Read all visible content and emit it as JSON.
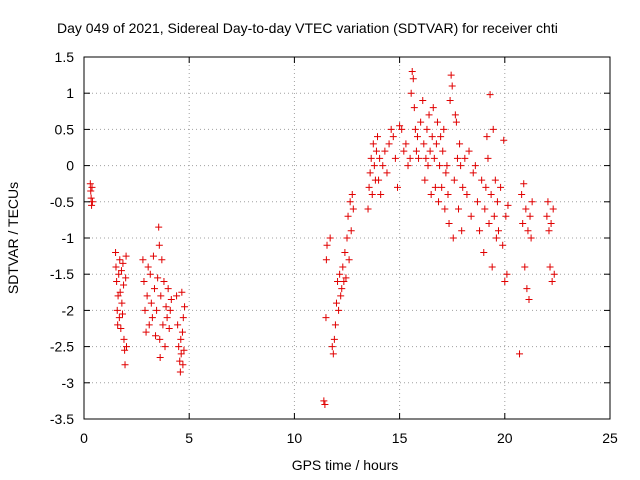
{
  "chart_data": {
    "type": "scatter",
    "title": "Day 049 of 2021, Sidereal Day-to-day VTEC variation (SDTVAR) for receiver chti",
    "xlabel": "GPS time / hours",
    "ylabel": "SDTVAR / TECUs",
    "xlim": [
      0,
      25
    ],
    "ylim": [
      -3.5,
      1.5
    ],
    "xticks": [
      0,
      5,
      10,
      15,
      20,
      25
    ],
    "xtick_labels": [
      "0",
      "5",
      "10",
      "15",
      "20",
      "25"
    ],
    "yticks": [
      -3.5,
      -3,
      -2.5,
      -2,
      -1.5,
      -1,
      -0.5,
      0,
      0.5,
      1,
      1.5
    ],
    "ytick_labels": [
      "-3.5",
      "-3",
      "-2.5",
      "-2",
      "-1.5",
      "-1",
      "-0.5",
      "0",
      "0.5",
      "1",
      "1.5"
    ],
    "grid": true,
    "marker": "+",
    "marker_color": "#e00000",
    "series": [
      {
        "name": "SDTVAR",
        "points": [
          [
            0.3,
            -0.25
          ],
          [
            0.32,
            -0.35
          ],
          [
            0.34,
            -0.45
          ],
          [
            0.36,
            -0.55
          ],
          [
            0.38,
            -0.3
          ],
          [
            0.4,
            -0.5
          ],
          [
            1.5,
            -1.2
          ],
          [
            1.52,
            -1.4
          ],
          [
            1.55,
            -1.6
          ],
          [
            1.58,
            -2.0
          ],
          [
            1.6,
            -2.2
          ],
          [
            1.62,
            -1.8
          ],
          [
            1.65,
            -1.5
          ],
          [
            1.68,
            -2.1
          ],
          [
            1.7,
            -1.3
          ],
          [
            1.72,
            -1.75
          ],
          [
            1.75,
            -2.25
          ],
          [
            1.78,
            -1.45
          ],
          [
            1.8,
            -1.9
          ],
          [
            1.83,
            -2.05
          ],
          [
            1.85,
            -1.35
          ],
          [
            1.88,
            -1.65
          ],
          [
            1.9,
            -2.4
          ],
          [
            1.93,
            -2.55
          ],
          [
            1.95,
            -2.75
          ],
          [
            1.98,
            -1.55
          ],
          [
            2.0,
            -1.25
          ],
          [
            2.02,
            -2.5
          ],
          [
            2.8,
            -1.3
          ],
          [
            2.85,
            -1.6
          ],
          [
            2.9,
            -2.0
          ],
          [
            2.95,
            -2.3
          ],
          [
            3.0,
            -1.8
          ],
          [
            3.05,
            -1.4
          ],
          [
            3.1,
            -2.2
          ],
          [
            3.15,
            -1.5
          ],
          [
            3.2,
            -1.9
          ],
          [
            3.25,
            -2.1
          ],
          [
            3.3,
            -1.25
          ],
          [
            3.35,
            -1.7
          ],
          [
            3.4,
            -2.35
          ],
          [
            3.45,
            -2.0
          ],
          [
            3.5,
            -1.55
          ],
          [
            3.55,
            -0.85
          ],
          [
            3.58,
            -1.1
          ],
          [
            3.6,
            -2.4
          ],
          [
            3.62,
            -2.65
          ],
          [
            3.65,
            -1.8
          ],
          [
            3.7,
            -1.3
          ],
          [
            3.75,
            -2.2
          ],
          [
            3.8,
            -1.6
          ],
          [
            3.85,
            -2.5
          ],
          [
            3.9,
            -1.95
          ],
          [
            3.95,
            -2.1
          ],
          [
            4.0,
            -1.7
          ],
          [
            4.05,
            -2.25
          ],
          [
            4.1,
            -2.0
          ],
          [
            4.15,
            -1.85
          ],
          [
            4.4,
            -1.8
          ],
          [
            4.45,
            -2.2
          ],
          [
            4.5,
            -2.5
          ],
          [
            4.55,
            -2.7
          ],
          [
            4.58,
            -2.85
          ],
          [
            4.6,
            -2.4
          ],
          [
            4.62,
            -2.6
          ],
          [
            4.65,
            -1.75
          ],
          [
            4.68,
            -2.3
          ],
          [
            4.7,
            -2.75
          ],
          [
            4.72,
            -2.1
          ],
          [
            4.75,
            -2.55
          ],
          [
            4.78,
            -1.95
          ],
          [
            11.4,
            -3.25
          ],
          [
            11.45,
            -3.3
          ],
          [
            11.5,
            -2.1
          ],
          [
            11.52,
            -1.3
          ],
          [
            11.55,
            -1.1
          ],
          [
            11.7,
            -1.0
          ],
          [
            11.8,
            -2.5
          ],
          [
            11.85,
            -2.6
          ],
          [
            11.9,
            -2.4
          ],
          [
            11.95,
            -2.2
          ],
          [
            12.0,
            -1.9
          ],
          [
            12.05,
            -1.6
          ],
          [
            12.1,
            -2.0
          ],
          [
            12.15,
            -1.5
          ],
          [
            12.2,
            -1.8
          ],
          [
            12.25,
            -1.7
          ],
          [
            12.3,
            -1.4
          ],
          [
            12.35,
            -1.6
          ],
          [
            12.4,
            -1.2
          ],
          [
            12.45,
            -1.55
          ],
          [
            12.5,
            -1.0
          ],
          [
            12.55,
            -0.7
          ],
          [
            12.6,
            -1.3
          ],
          [
            12.65,
            -0.5
          ],
          [
            12.7,
            -0.9
          ],
          [
            12.75,
            -0.4
          ],
          [
            12.8,
            -0.6
          ],
          [
            13.5,
            -0.6
          ],
          [
            13.55,
            -0.3
          ],
          [
            13.6,
            -0.1
          ],
          [
            13.65,
            0.1
          ],
          [
            13.7,
            -0.4
          ],
          [
            13.75,
            0.3
          ],
          [
            13.8,
            0.0
          ],
          [
            13.85,
            -0.2
          ],
          [
            13.9,
            0.2
          ],
          [
            13.95,
            0.4
          ],
          [
            14.0,
            -0.2
          ],
          [
            14.05,
            0.1
          ],
          [
            14.1,
            -0.4
          ],
          [
            14.2,
            0.0
          ],
          [
            14.3,
            0.2
          ],
          [
            14.4,
            -0.1
          ],
          [
            14.5,
            0.3
          ],
          [
            14.6,
            0.5
          ],
          [
            14.7,
            0.4
          ],
          [
            14.8,
            0.1
          ],
          [
            14.9,
            -0.3
          ],
          [
            15.0,
            0.55
          ],
          [
            15.1,
            0.5
          ],
          [
            15.2,
            0.2
          ],
          [
            15.3,
            0.3
          ],
          [
            15.4,
            0.0
          ],
          [
            15.5,
            0.1
          ],
          [
            15.55,
            1.0
          ],
          [
            15.6,
            1.3
          ],
          [
            15.65,
            1.2
          ],
          [
            15.7,
            0.8
          ],
          [
            15.75,
            0.5
          ],
          [
            15.8,
            0.2
          ],
          [
            15.85,
            0.4
          ],
          [
            15.9,
            0.1
          ],
          [
            16.0,
            0.6
          ],
          [
            16.1,
            0.9
          ],
          [
            16.15,
            0.3
          ],
          [
            16.2,
            -0.2
          ],
          [
            16.25,
            0.1
          ],
          [
            16.3,
            0.5
          ],
          [
            16.35,
            0.0
          ],
          [
            16.4,
            0.7
          ],
          [
            16.45,
            0.2
          ],
          [
            16.5,
            -0.4
          ],
          [
            16.55,
            0.4
          ],
          [
            16.6,
            0.8
          ],
          [
            16.65,
            0.1
          ],
          [
            16.7,
            -0.3
          ],
          [
            16.75,
            0.3
          ],
          [
            16.8,
            0.6
          ],
          [
            16.85,
            -0.5
          ],
          [
            16.9,
            0.0
          ],
          [
            16.95,
            0.4
          ],
          [
            17.0,
            -0.3
          ],
          [
            17.05,
            0.2
          ],
          [
            17.1,
            0.5
          ],
          [
            17.15,
            -0.6
          ],
          [
            17.2,
            -0.1
          ],
          [
            17.25,
            0.0
          ],
          [
            17.3,
            -0.4
          ],
          [
            17.35,
            -0.8
          ],
          [
            17.4,
            0.9
          ],
          [
            17.45,
            1.25
          ],
          [
            17.5,
            1.1
          ],
          [
            17.55,
            -1.0
          ],
          [
            17.6,
            -0.2
          ],
          [
            17.65,
            0.7
          ],
          [
            17.7,
            0.6
          ],
          [
            17.75,
            0.1
          ],
          [
            17.8,
            -0.6
          ],
          [
            17.85,
            0.3
          ],
          [
            17.9,
            0.0
          ],
          [
            17.95,
            -0.9
          ],
          [
            18.0,
            -0.3
          ],
          [
            18.1,
            0.1
          ],
          [
            18.2,
            -0.4
          ],
          [
            18.3,
            0.2
          ],
          [
            18.4,
            -0.7
          ],
          [
            18.5,
            -0.1
          ],
          [
            18.6,
            0.0
          ],
          [
            18.7,
            -0.5
          ],
          [
            18.8,
            -0.9
          ],
          [
            18.9,
            -0.2
          ],
          [
            19.0,
            -1.2
          ],
          [
            19.05,
            -0.6
          ],
          [
            19.1,
            -0.3
          ],
          [
            19.15,
            0.4
          ],
          [
            19.2,
            0.1
          ],
          [
            19.25,
            -0.8
          ],
          [
            19.3,
            0.98
          ],
          [
            19.35,
            -0.4
          ],
          [
            19.4,
            -1.4
          ],
          [
            19.45,
            0.5
          ],
          [
            19.5,
            -0.7
          ],
          [
            19.55,
            -0.2
          ],
          [
            19.6,
            -1.0
          ],
          [
            19.65,
            -0.5
          ],
          [
            19.7,
            -0.9
          ],
          [
            19.8,
            -0.3
          ],
          [
            19.9,
            -1.1
          ],
          [
            19.95,
            0.35
          ],
          [
            20.0,
            -1.6
          ],
          [
            20.05,
            -0.7
          ],
          [
            20.1,
            -1.5
          ],
          [
            20.15,
            -0.55
          ],
          [
            20.7,
            -2.6
          ],
          [
            20.8,
            -0.4
          ],
          [
            20.85,
            -0.8
          ],
          [
            20.9,
            -0.25
          ],
          [
            20.95,
            -1.4
          ],
          [
            21.0,
            -0.6
          ],
          [
            21.05,
            -1.7
          ],
          [
            21.1,
            -0.9
          ],
          [
            21.15,
            -1.85
          ],
          [
            21.2,
            -0.7
          ],
          [
            21.25,
            -1.0
          ],
          [
            21.3,
            -0.5
          ],
          [
            22.0,
            -0.7
          ],
          [
            22.05,
            -0.5
          ],
          [
            22.1,
            -0.9
          ],
          [
            22.15,
            -1.4
          ],
          [
            22.2,
            -0.8
          ],
          [
            22.25,
            -1.6
          ],
          [
            22.3,
            -0.6
          ],
          [
            22.35,
            -1.5
          ]
        ]
      }
    ]
  }
}
